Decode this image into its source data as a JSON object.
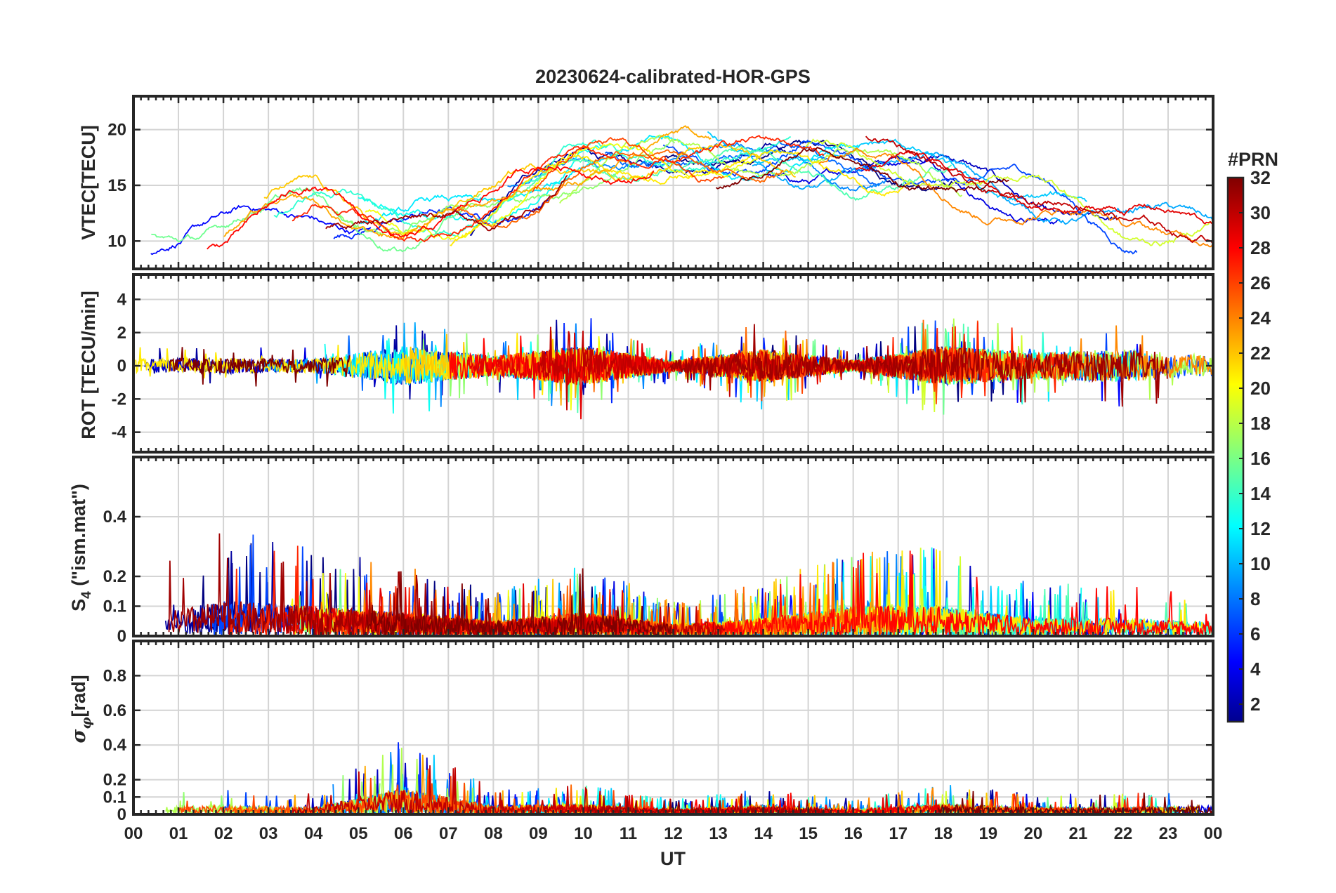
{
  "figure": {
    "title": "20230624-calibrated-HOR-GPS",
    "xlabel": "UT",
    "x_ticks": [
      "00",
      "01",
      "02",
      "03",
      "04",
      "05",
      "06",
      "07",
      "08",
      "09",
      "10",
      "11",
      "12",
      "13",
      "14",
      "15",
      "16",
      "17",
      "18",
      "19",
      "20",
      "21",
      "22",
      "23",
      "00"
    ]
  },
  "colorbar": {
    "label": "#PRN",
    "range": [
      1,
      32
    ],
    "ticks": [
      2,
      4,
      6,
      8,
      10,
      12,
      14,
      16,
      18,
      20,
      22,
      24,
      26,
      28,
      30,
      32
    ],
    "tick_labels": [
      "2",
      "4",
      "6",
      "8",
      "10",
      "12",
      "14",
      "16",
      "18",
      "20",
      "22",
      "24",
      "26",
      "28",
      "30",
      "32"
    ],
    "colormap": "jet"
  },
  "chart_data": [
    {
      "type": "line",
      "panel": "vtec",
      "ylabel": "VTEC[TECU]",
      "xlim": [
        0,
        24
      ],
      "ylim": [
        7.5,
        23
      ],
      "y_ticks": [
        10,
        15,
        20
      ],
      "y_tick_labels": [
        "10",
        "15",
        "20"
      ],
      "grid": true,
      "series_note": "one trace per GPS satellite PRN 1-32, colored by PRN",
      "envelope": {
        "x": [
          0,
          2,
          4,
          6,
          8,
          10,
          12,
          14,
          16,
          18,
          20,
          22,
          24
        ],
        "mean": [
          11,
          11,
          13,
          11,
          13,
          17,
          18,
          17,
          17,
          16,
          14,
          11,
          12
        ]
      }
    },
    {
      "type": "line",
      "panel": "rot",
      "ylabel": "ROT [TECU/min]",
      "xlim": [
        0,
        24
      ],
      "ylim": [
        -5.2,
        5.5
      ],
      "y_ticks": [
        -4,
        -2,
        0,
        2,
        4
      ],
      "y_tick_labels": [
        "-4",
        "-2",
        "0",
        "2",
        "4"
      ],
      "grid": true,
      "envelope": {
        "x": [
          0,
          2,
          4,
          6,
          8,
          10,
          12,
          14,
          16,
          18,
          20,
          22,
          24
        ],
        "max_abs": [
          1.0,
          1.2,
          1.0,
          3.0,
          1.5,
          3.0,
          0.8,
          2.5,
          0.8,
          3.0,
          2.0,
          2.5,
          1.5
        ]
      }
    },
    {
      "type": "line",
      "panel": "s4",
      "ylabel": "S4 (\"ism.mat\")",
      "ylabel_main": "S",
      "ylabel_sub": "4",
      "ylabel_rest": " (\"ism.mat\")",
      "xlim": [
        0,
        24
      ],
      "ylim": [
        0,
        0.6
      ],
      "y_ticks": [
        0,
        0.1,
        0.2,
        0.4
      ],
      "y_tick_labels": [
        "0",
        "0.1",
        "0.2",
        "0.4"
      ],
      "grid": true,
      "envelope": {
        "x": [
          0,
          2,
          4,
          6,
          8,
          10,
          12,
          14,
          16,
          18,
          20,
          22,
          24
        ],
        "level": [
          0.06,
          0.12,
          0.1,
          0.08,
          0.05,
          0.08,
          0.04,
          0.06,
          0.1,
          0.1,
          0.06,
          0.06,
          0.05
        ]
      }
    },
    {
      "type": "line",
      "panel": "sigma_phi",
      "ylabel": "σφ[rad]",
      "ylabel_main": "σ",
      "ylabel_sub": "φ",
      "ylabel_rest": "[rad]",
      "xlim": [
        0,
        24
      ],
      "ylim": [
        0,
        1.0
      ],
      "y_ticks": [
        0,
        0.1,
        0.2,
        0.4,
        0.6,
        0.8
      ],
      "y_tick_labels": [
        "0",
        "0.1",
        "0.2",
        "0.4",
        "0.6",
        "0.8"
      ],
      "grid": true,
      "envelope": {
        "x": [
          0,
          2,
          4,
          6,
          8,
          10,
          12,
          14,
          16,
          18,
          20,
          22,
          24
        ],
        "level": [
          0.04,
          0.05,
          0.04,
          0.15,
          0.05,
          0.06,
          0.03,
          0.05,
          0.03,
          0.06,
          0.04,
          0.04,
          0.05
        ]
      }
    }
  ]
}
